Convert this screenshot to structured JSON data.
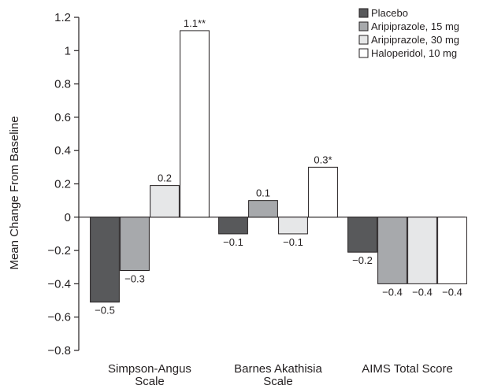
{
  "chart_data": {
    "type": "bar",
    "title": "",
    "xlabel": "",
    "ylabel": "Mean Change From Baseline",
    "ylim": [
      -0.8,
      1.2
    ],
    "yticks": [
      1.2,
      1,
      0.8,
      0.6,
      0.4,
      0.2,
      0,
      -0.2,
      -0.4,
      -0.6,
      -0.8
    ],
    "ytick_labels": [
      "1.2",
      "1",
      "0.8",
      "0.6",
      "0.4",
      "0.2",
      "0",
      "−0.2",
      "−0.4",
      "−0.6",
      "−0.8"
    ],
    "grid": false,
    "legend_position": "top-right",
    "categories": [
      [
        "Simpson-Angus",
        "Scale"
      ],
      [
        "Barnes Akathisia",
        "Scale"
      ],
      [
        "AIMS Total Score"
      ]
    ],
    "series": [
      {
        "name": "Placebo",
        "color": "#58595b",
        "values": [
          -0.51,
          -0.1,
          -0.21
        ],
        "labels": [
          "−0.5",
          "−0.1",
          "−0.2"
        ]
      },
      {
        "name": "Aripiprazole, 15 mg",
        "color": "#a7a9ac",
        "values": [
          -0.32,
          0.1,
          -0.4
        ],
        "labels": [
          "−0.3",
          "0.1",
          "−0.4"
        ]
      },
      {
        "name": "Aripiprazole, 30 mg",
        "color": "#e6e7e8",
        "values": [
          0.19,
          -0.1,
          -0.4
        ],
        "labels": [
          "0.2",
          "−0.1",
          "−0.4"
        ]
      },
      {
        "name": "Haloperidol, 10 mg",
        "color": "#ffffff",
        "values": [
          1.12,
          0.3,
          -0.4
        ],
        "labels": [
          "1.1**",
          "0.3*",
          "−0.4"
        ]
      }
    ]
  }
}
